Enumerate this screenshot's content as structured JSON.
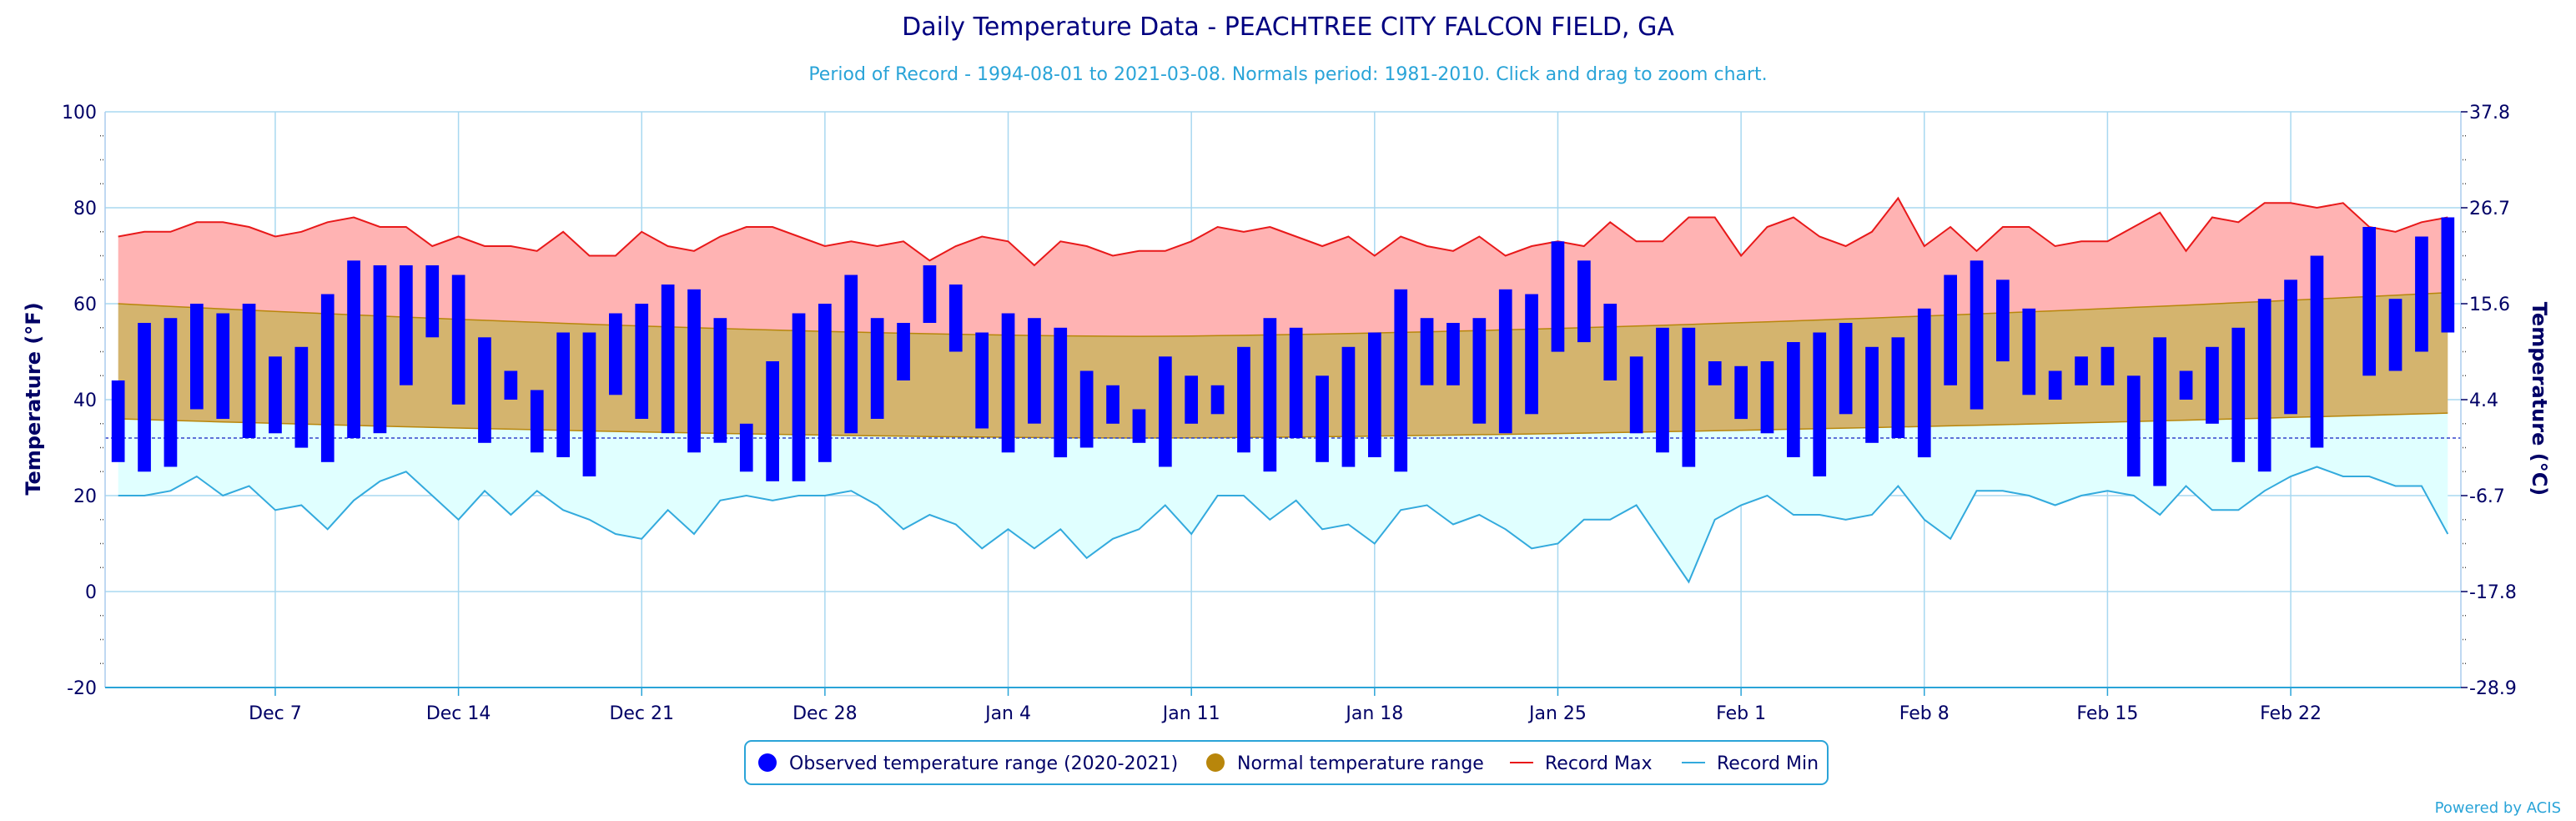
{
  "title": "Daily Temperature Data - PEACHTREE CITY FALCON FIELD, GA",
  "subtitle": "Period of Record - 1994-08-01 to 2021-03-08. Normals period: 1981-2010. Click and drag to zoom chart.",
  "credits": "Powered by ACIS",
  "colors": {
    "observed": "#0000ff",
    "normal_band": "#d4b46e",
    "normal_legend": "#b8860b",
    "record_max_fill": "#ffb3b3",
    "record_max_line": "#e8191a",
    "record_min_fill": "#e0ffff",
    "record_min_line": "#33aadd",
    "grid": "#a8d8f0",
    "axis_text": "#000066"
  },
  "legend": {
    "observed": "Observed temperature range (2020-2021)",
    "normal": "Normal temperature range",
    "record_max": "Record Max",
    "record_min": "Record Min"
  },
  "chart_data": {
    "type": "bar",
    "title": "Daily Temperature Data - PEACHTREE CITY FALCON FIELD, GA",
    "xlabel": "",
    "ylabel": "Temperature (°F)",
    "ylabel_right": "Temperature (°C)",
    "ylim": [
      -20,
      100
    ],
    "yticks": [
      -20,
      0,
      20,
      40,
      60,
      80,
      100
    ],
    "yticks_right": [
      "-28.9",
      "-17.8",
      "-6.7",
      "4.4",
      "15.6",
      "26.7",
      "37.8"
    ],
    "xticks": [
      {
        "day": 6,
        "label": "Dec 7"
      },
      {
        "day": 13,
        "label": "Dec 14"
      },
      {
        "day": 20,
        "label": "Dec 21"
      },
      {
        "day": 27,
        "label": "Dec 28"
      },
      {
        "day": 34,
        "label": "Jan 4"
      },
      {
        "day": 41,
        "label": "Jan 11"
      },
      {
        "day": 48,
        "label": "Jan 18"
      },
      {
        "day": 55,
        "label": "Jan 25"
      },
      {
        "day": 62,
        "label": "Feb 1"
      },
      {
        "day": 69,
        "label": "Feb 8"
      },
      {
        "day": 76,
        "label": "Feb 15"
      },
      {
        "day": 83,
        "label": "Feb 22"
      }
    ],
    "grid": true,
    "legend_position": "bottom",
    "freezing_line": 32,
    "series": [
      {
        "name": "Observed temperature range (2020-2021)",
        "low": [
          27,
          25,
          26,
          38,
          36,
          32,
          33,
          30,
          27,
          32,
          33,
          43,
          53,
          39,
          31,
          40,
          29,
          28,
          24,
          41,
          36,
          33,
          29,
          31,
          25,
          23,
          23,
          27,
          33,
          36,
          44,
          56,
          50,
          34,
          29,
          35,
          28,
          30,
          35,
          31,
          26,
          35,
          37,
          29,
          25,
          32,
          27,
          26,
          28,
          25,
          43,
          43,
          35,
          33,
          37,
          50,
          52,
          44,
          33,
          29,
          26,
          43,
          36,
          33,
          28,
          24,
          37,
          31,
          32,
          28,
          43,
          38,
          48,
          41,
          40,
          43,
          43,
          24,
          22,
          40,
          35,
          27,
          25,
          37,
          30,
          null,
          45,
          46,
          50,
          54
        ],
        "high": [
          44,
          56,
          57,
          60,
          58,
          60,
          49,
          51,
          62,
          69,
          68,
          68,
          68,
          66,
          53,
          46,
          42,
          54,
          54,
          58,
          60,
          64,
          63,
          57,
          35,
          48,
          58,
          60,
          66,
          57,
          56,
          68,
          64,
          54,
          58,
          57,
          55,
          46,
          43,
          38,
          49,
          45,
          43,
          51,
          57,
          55,
          45,
          51,
          54,
          63,
          57,
          56,
          57,
          63,
          62,
          73,
          69,
          60,
          49,
          55,
          55,
          48,
          47,
          48,
          52,
          54,
          56,
          51,
          53,
          59,
          66,
          69,
          65,
          59,
          46,
          49,
          51,
          45,
          53,
          46,
          51,
          55,
          61,
          65,
          70,
          null,
          76,
          61,
          74,
          78
        ]
      },
      {
        "name": "Normal temperature range",
        "low_start": 36.0,
        "low_end": 37.2,
        "low_min": 32.0,
        "high_start": 60.0,
        "high_end": 62.3,
        "high_min": 53.2
      },
      {
        "name": "Record Max",
        "values": [
          74,
          75,
          75,
          77,
          77,
          76,
          74,
          75,
          77,
          78,
          76,
          76,
          72,
          74,
          72,
          72,
          71,
          75,
          70,
          70,
          75,
          72,
          71,
          74,
          76,
          76,
          74,
          72,
          73,
          72,
          73,
          69,
          72,
          74,
          73,
          68,
          73,
          72,
          70,
          71,
          71,
          73,
          76,
          75,
          76,
          74,
          72,
          74,
          70,
          74,
          72,
          71,
          74,
          70,
          72,
          73,
          72,
          77,
          73,
          73,
          78,
          78,
          70,
          76,
          78,
          74,
          72,
          75,
          82,
          72,
          76,
          71,
          76,
          76,
          72,
          73,
          73,
          76,
          79,
          71,
          78,
          77,
          81,
          81,
          80,
          81,
          76,
          75,
          77,
          78
        ]
      },
      {
        "name": "Record Min",
        "values": [
          20,
          20,
          21,
          24,
          20,
          22,
          17,
          18,
          13,
          19,
          23,
          25,
          20,
          15,
          21,
          16,
          21,
          17,
          15,
          12,
          11,
          17,
          12,
          19,
          20,
          19,
          20,
          20,
          21,
          18,
          13,
          16,
          14,
          9,
          13,
          9,
          13,
          7,
          11,
          13,
          18,
          12,
          20,
          20,
          15,
          19,
          13,
          14,
          10,
          17,
          18,
          14,
          16,
          13,
          9,
          10,
          15,
          15,
          18,
          10,
          2,
          15,
          18,
          20,
          16,
          16,
          15,
          16,
          22,
          15,
          11,
          21,
          21,
          20,
          18,
          20,
          21,
          20,
          16,
          22,
          17,
          17,
          21,
          24,
          26,
          24,
          24,
          22,
          22,
          12
        ]
      }
    ]
  }
}
